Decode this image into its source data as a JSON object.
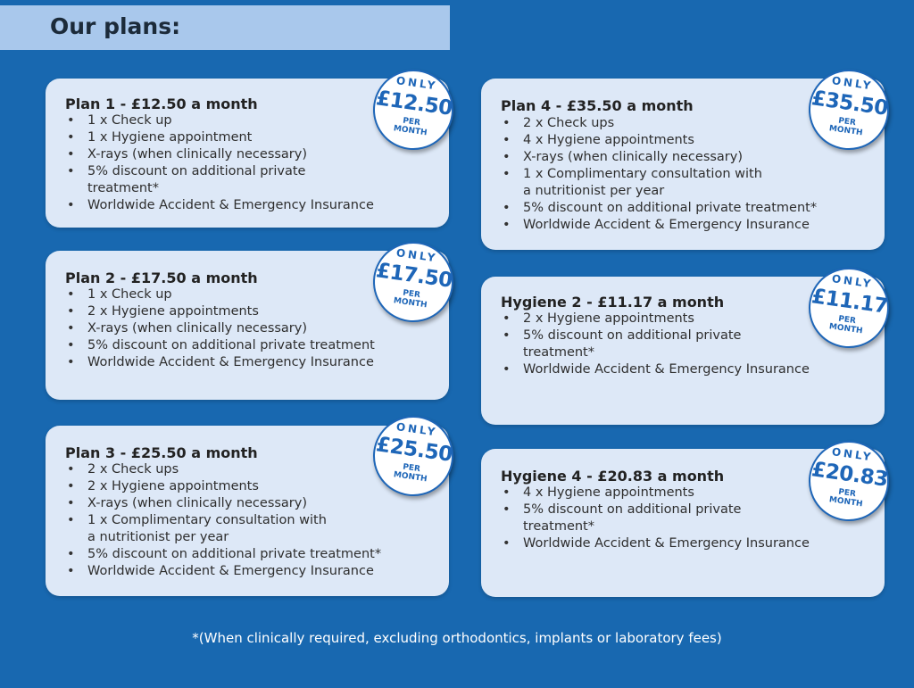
{
  "header": {
    "title": "Our plans:"
  },
  "badge": {
    "only": "ONLY",
    "per": "PER",
    "month": "MONTH"
  },
  "plans": [
    {
      "title": "Plan 1 - £12.50 a month",
      "price": "£12.50",
      "items": [
        "1 x Check up",
        "1 x Hygiene appointment",
        "X-rays (when clinically necessary)",
        "5% discount on additional private",
        "treatment*",
        "Worldwide Accident & Emergency Insurance"
      ]
    },
    {
      "title": "Plan 2 - £17.50 a month",
      "price": "£17.50",
      "items": [
        "1 x Check up",
        "2 x Hygiene appointments",
        "X-rays (when clinically necessary)",
        "5% discount on additional private treatment",
        "Worldwide Accident & Emergency Insurance"
      ]
    },
    {
      "title": "Plan 3 - £25.50 a month",
      "price": "£25.50",
      "items": [
        "2 x Check ups",
        "2 x Hygiene appointments",
        "X-rays (when clinically necessary)",
        "1 x Complimentary consultation with",
        "a nutritionist per year",
        "5% discount on additional private treatment*",
        "Worldwide Accident & Emergency Insurance"
      ]
    },
    {
      "title": "Plan 4 - £35.50 a month",
      "price": "£35.50",
      "items": [
        "2 x Check ups",
        "4 x Hygiene appointments",
        "X-rays (when clinically necessary)",
        "1 x Complimentary consultation with",
        "a nutritionist per year",
        "5% discount on additional private treatment*",
        "Worldwide Accident & Emergency Insurance"
      ]
    },
    {
      "title": "Hygiene 2 - £11.17 a month",
      "price": "£11.17",
      "items": [
        "2 x Hygiene appointments",
        "5% discount on additional private",
        "treatment*",
        "Worldwide Accident & Emergency Insurance"
      ]
    },
    {
      "title": "Hygiene 4 - £20.83 a month",
      "price": "£20.83",
      "items": [
        "4 x Hygiene appointments",
        "5% discount on additional private",
        "treatment*",
        "Worldwide Accident & Emergency Insurance"
      ]
    }
  ],
  "footnote": "*(When clinically required, excluding orthodontics, implants or laboratory fees)",
  "colors": {
    "background": "#1868b0",
    "card": "#dde8f7",
    "header_band": "#a9c8ec",
    "badge_text": "#1e66b8"
  }
}
